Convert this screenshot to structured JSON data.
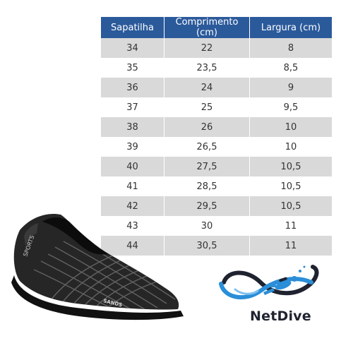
{
  "size_table": {
    "headers": [
      "Sapatilha",
      "Comprimento (cm)",
      "Largura (cm)"
    ],
    "rows": [
      [
        "34",
        "22",
        "8"
      ],
      [
        "35",
        "23,5",
        "8,5"
      ],
      [
        "36",
        "24",
        "9"
      ],
      [
        "37",
        "25",
        "9,5"
      ],
      [
        "38",
        "26",
        "10"
      ],
      [
        "39",
        "26,5",
        "10"
      ],
      [
        "40",
        "27,5",
        "10,5"
      ],
      [
        "41",
        "28,5",
        "10,5"
      ],
      [
        "42",
        "29,5",
        "10,5"
      ],
      [
        "43",
        "30",
        "11"
      ],
      [
        "44",
        "30,5",
        "11"
      ]
    ]
  },
  "shoe": {
    "icon": "water-shoe-image",
    "brand_text": "SANDS",
    "side_text": "SPORTS"
  },
  "logo": {
    "icon": "diver-logo",
    "name": "NetDive"
  },
  "colors": {
    "header": "#2b5a9b",
    "stripe": "#d9d9d9",
    "logo_blue": "#2a8ed8"
  }
}
